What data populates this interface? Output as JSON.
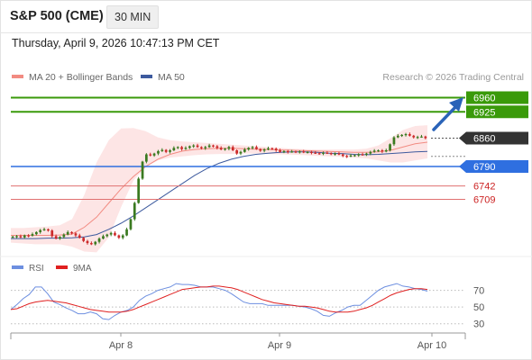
{
  "header": {
    "symbol": "S&P 500 (CME)",
    "timeframe": "30 MIN",
    "datetime": "Thursday, April 9, 2026 10:47:13 PM CET",
    "credit": "Research © 2026 Trading Central"
  },
  "legend": {
    "bollinger": {
      "label": "MA 20 + Bollinger Bands",
      "color": "#f28b82"
    },
    "ma50": {
      "label": "MA 50",
      "color": "#3d5a9e"
    }
  },
  "rsi_legend": {
    "rsi": {
      "label": "RSI",
      "color": "#6d8fe0"
    },
    "ma9": {
      "label": "9MA",
      "color": "#e02020"
    }
  },
  "colors": {
    "resistance": "#3a9a0a",
    "support": "#2f6fe0",
    "minor_level": "#e07070",
    "price_tag": "#333333",
    "bull_candle": "#3a7a20",
    "bear_candle": "#cc2a2a",
    "bands_fill": "#fde0e0",
    "arrow": "#2a63b8"
  },
  "chart_data": [
    {
      "type": "candlestick",
      "x_ticks": [
        "Apr 8",
        "Apr 9",
        "Apr 10"
      ],
      "ylim": [
        6570,
        6990
      ],
      "levels": [
        {
          "value": 6960,
          "label": "6960",
          "kind": "resistance"
        },
        {
          "value": 6925,
          "label": "6925",
          "kind": "resistance"
        },
        {
          "value": 6860,
          "label": "6860",
          "kind": "last"
        },
        {
          "value": 6790,
          "label": "6790",
          "kind": "support"
        },
        {
          "value": 6742,
          "label": "6742",
          "kind": "minor"
        },
        {
          "value": 6709,
          "label": "6709",
          "kind": "minor"
        }
      ],
      "close": [
        6617,
        6618,
        6615,
        6620,
        6619,
        6623,
        6628,
        6633,
        6635,
        6632,
        6618,
        6612,
        6616,
        6622,
        6628,
        6625,
        6620,
        6614,
        6606,
        6601,
        6598,
        6604,
        6612,
        6618,
        6622,
        6626,
        6620,
        6614,
        6620,
        6635,
        6660,
        6700,
        6760,
        6802,
        6820,
        6817,
        6822,
        6828,
        6831,
        6826,
        6830,
        6836,
        6838,
        6833,
        6836,
        6840,
        6842,
        6838,
        6835,
        6838,
        6842,
        6840,
        6836,
        6832,
        6834,
        6838,
        6830,
        6822,
        6826,
        6832,
        6836,
        6838,
        6833,
        6829,
        6832,
        6835,
        6834,
        6830,
        6826,
        6828,
        6826,
        6827,
        6826,
        6827,
        6825,
        6826,
        6824,
        6823,
        6822,
        6824,
        6823,
        6821,
        6822,
        6820,
        6816,
        6815,
        6817,
        6818,
        6820,
        6819,
        6822,
        6826,
        6829,
        6830,
        6827,
        6830,
        6845,
        6862,
        6866,
        6868,
        6870,
        6866,
        6862,
        6863,
        6864,
        6860
      ],
      "bollinger": {
        "middle": [
          6620,
          6620,
          6620,
          6620,
          6621,
          6623,
          6640,
          6665,
          6700,
          6735,
          6765,
          6790,
          6808,
          6820,
          6828,
          6832,
          6834,
          6835,
          6835,
          6834,
          6833,
          6832,
          6831,
          6830,
          6829,
          6828,
          6827,
          6826,
          6825,
          6825,
          6826,
          6830,
          6838,
          6846,
          6850
        ],
        "upper": [
          6638,
          6638,
          6640,
          6642,
          6645,
          6660,
          6720,
          6800,
          6855,
          6884,
          6885,
          6877,
          6862,
          6855,
          6852,
          6850,
          6848,
          6846,
          6844,
          6842,
          6840,
          6838,
          6836,
          6834,
          6833,
          6832,
          6832,
          6832,
          6832,
          6834,
          6842,
          6860,
          6880,
          6890,
          6892
        ],
        "lower": [
          6602,
          6600,
          6598,
          6598,
          6598,
          6592,
          6580,
          6578,
          6615,
          6690,
          6755,
          6788,
          6805,
          6812,
          6815,
          6818,
          6820,
          6821,
          6821,
          6822,
          6822,
          6821,
          6820,
          6819,
          6818,
          6816,
          6815,
          6814,
          6812,
          6810,
          6805,
          6800,
          6800,
          6805,
          6810
        ]
      },
      "ma50": [
        6612,
        6612,
        6612,
        6613,
        6613,
        6614,
        6616,
        6622,
        6635,
        6650,
        6668,
        6688,
        6708,
        6728,
        6748,
        6768,
        6785,
        6798,
        6808,
        6815,
        6820,
        6823,
        6825,
        6826,
        6826,
        6825,
        6823,
        6822,
        6820,
        6819,
        6820,
        6822,
        6824,
        6826,
        6827
      ]
    },
    {
      "type": "line",
      "name": "RSI",
      "ylim": [
        20,
        90
      ],
      "y_ticks": [
        70,
        50,
        30
      ],
      "reference_lines": [
        70,
        50,
        30
      ],
      "series": [
        {
          "name": "RSI",
          "values": [
            47,
            53,
            60,
            65,
            74,
            74,
            66,
            56,
            53,
            49,
            46,
            42,
            42,
            44,
            42,
            36,
            35,
            40,
            44,
            46,
            50,
            58,
            63,
            66,
            70,
            72,
            74,
            78,
            77,
            77,
            76,
            74,
            74,
            74,
            72,
            70,
            66,
            61,
            56,
            54,
            54,
            54,
            52,
            52,
            52,
            52,
            52,
            51,
            50,
            48,
            45,
            40,
            39,
            43,
            46,
            50,
            52,
            52,
            58,
            64,
            70,
            74,
            76,
            78,
            75,
            74,
            72,
            71,
            69
          ]
        },
        {
          "name": "9MA",
          "values": [
            47,
            48,
            51,
            54,
            56,
            57,
            58,
            57,
            56,
            55,
            53,
            51,
            49,
            47,
            46,
            45,
            44,
            44,
            44,
            45,
            47,
            50,
            53,
            56,
            59,
            62,
            65,
            68,
            71,
            72,
            73,
            74,
            74,
            75,
            75,
            74,
            73,
            71,
            68,
            65,
            62,
            59,
            57,
            55,
            54,
            53,
            52,
            51,
            51,
            50,
            49,
            47,
            45,
            44,
            44,
            44,
            45,
            47,
            49,
            52,
            56,
            60,
            64,
            67,
            69,
            71,
            72,
            72,
            71
          ]
        }
      ]
    }
  ]
}
